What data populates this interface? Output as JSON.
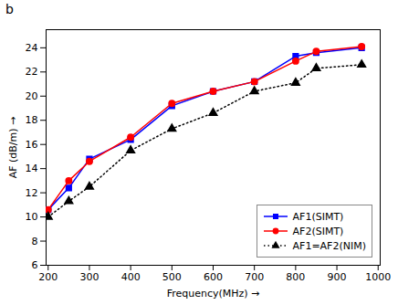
{
  "chart_data": {
    "type": "line",
    "title": "b",
    "x": [
      200,
      250,
      300,
      400,
      500,
      600,
      700,
      800,
      850,
      960
    ],
    "series": [
      {
        "name": "AF1(SIMT)",
        "color": "#0000FF",
        "marker": "square",
        "line_style": "solid",
        "values": [
          10.6,
          12.4,
          14.8,
          16.4,
          19.2,
          20.4,
          21.2,
          23.3,
          23.6,
          24.0
        ]
      },
      {
        "name": "AF2(SIMT)",
        "color": "#FF0000",
        "marker": "circle",
        "line_style": "solid",
        "values": [
          10.6,
          13.0,
          14.6,
          16.6,
          19.4,
          20.4,
          21.2,
          22.9,
          23.7,
          24.1
        ]
      },
      {
        "name": "AF1=AF2(NIM)",
        "color": "#000000",
        "marker": "triangle",
        "line_style": "dotted",
        "values": [
          10.0,
          11.3,
          12.5,
          15.5,
          17.3,
          18.6,
          20.4,
          21.1,
          22.3,
          22.6
        ]
      }
    ],
    "xlabel": "Frequency(MHz)",
    "ylabel": "AF (dB/m)",
    "xlim": [
      195,
      1005
    ],
    "ylim": [
      6,
      25.5
    ],
    "xticks": [
      200,
      300,
      400,
      500,
      600,
      700,
      800,
      900,
      1000
    ],
    "yticks": [
      6,
      8,
      10,
      12,
      14,
      16,
      18,
      20,
      22,
      24
    ],
    "grid": false,
    "legend": "lower right"
  }
}
